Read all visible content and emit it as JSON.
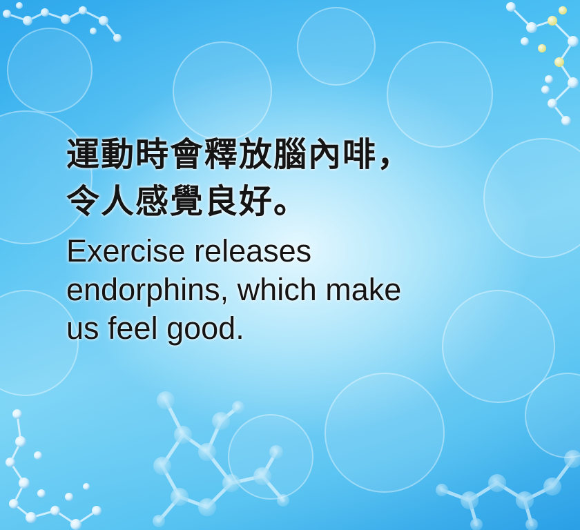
{
  "card": {
    "chinese_line_1": "運動時會釋放腦內啡，",
    "chinese_line_2": "令人感覺良好。",
    "english_line_1": "Exercise releases",
    "english_line_2": "endorphins, which make",
    "english_line_3": "us feel good."
  },
  "colors": {
    "background_main": "#4cc0f2",
    "background_light": "#ebfaff",
    "text": "#141414"
  },
  "decor": {
    "top_left": "molecule-icon",
    "top_right": "molecule-icon",
    "bottom_left": "molecule-icon",
    "bottom_center": "chemical-structure-icon",
    "bottom_right": "chemical-structure-icon"
  }
}
